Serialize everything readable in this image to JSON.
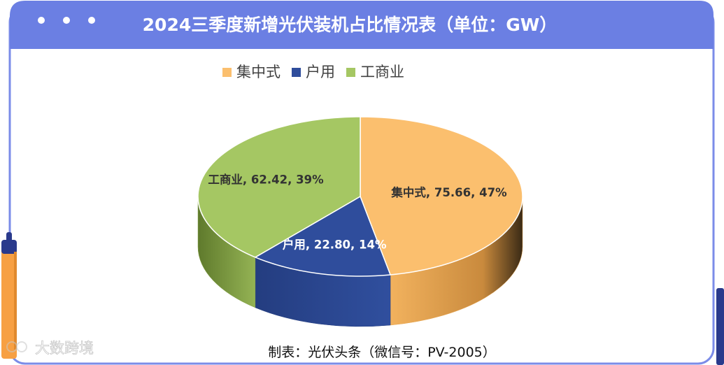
{
  "header": {
    "title": "2024三季度新增光伏装机占比情况表（单位：GW）"
  },
  "footer": {
    "credit": "制表：光伏头条（微信号：PV-2005）",
    "watermark": "大数跨境"
  },
  "colors": {
    "header_bg": "#6b7fe3",
    "frame_border": "#7b8ce8",
    "pen_orange": "#f7a043",
    "pen_navy": "#2a3a8c"
  },
  "chart_data": {
    "type": "pie",
    "title": "2024三季度新增光伏装机占比情况表（单位：GW）",
    "legend_position": "top",
    "slices": [
      {
        "name": "集中式",
        "value": 75.66,
        "percent": 47,
        "label": "集中式, 75.66, 47%",
        "color": "#fbbf6e",
        "side_color": "#e9a852"
      },
      {
        "name": "户用",
        "value": 22.8,
        "percent": 14,
        "label": "户用, 22.80, 14%",
        "color": "#2f4d9c",
        "side_color": "#243d80"
      },
      {
        "name": "工商业",
        "value": 62.42,
        "percent": 39,
        "label": "工商业, 62.42, 39%",
        "color": "#a5c763",
        "side_color": "#86a34a"
      }
    ]
  }
}
